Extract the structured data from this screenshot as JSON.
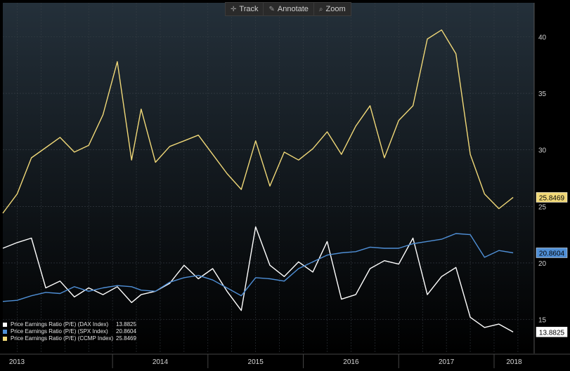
{
  "toolbar": {
    "track_label": "Track",
    "annotate_label": "Annotate",
    "zoom_label": "Zoom"
  },
  "colors": {
    "dax": "#ffffff",
    "spx": "#4f8fd6",
    "ccmp": "#f0d878",
    "background_top": "#24303a",
    "background_bottom": "#000000",
    "grid": "#3a4148"
  },
  "legend": {
    "items": [
      {
        "label": "Price Earnings Ratio (P/E) (DAX Index)",
        "value": "13.8825"
      },
      {
        "label": "Price Earnings Ratio (P/E) (SPX Index)",
        "value": "20.8604"
      },
      {
        "label": "Price Earnings Ratio (P/E) (CCMP Index)",
        "value": "25.8469"
      }
    ]
  },
  "chart_data": {
    "type": "line",
    "x": [
      2012.85,
      2013.0,
      2013.15,
      2013.3,
      2013.45,
      2013.6,
      2013.75,
      2013.9,
      2014.05,
      2014.2,
      2014.3,
      2014.45,
      2014.6,
      2014.75,
      2014.9,
      2015.05,
      2015.2,
      2015.35,
      2015.5,
      2015.65,
      2015.8,
      2015.95,
      2016.1,
      2016.25,
      2016.4,
      2016.55,
      2016.7,
      2016.85,
      2017.0,
      2017.15,
      2017.3,
      2017.45,
      2017.6,
      2017.75,
      2017.9,
      2018.05,
      2018.2
    ],
    "x_ticks": [
      "2013",
      "2014",
      "2015",
      "2016",
      "2017",
      "2018"
    ],
    "x_tick_values": [
      2013.0,
      2014.0,
      2015.0,
      2016.0,
      2017.0,
      2018.0
    ],
    "ylim": [
      12,
      43
    ],
    "y_ticks": [
      15,
      20,
      25,
      30,
      35,
      40
    ],
    "grid": true,
    "series": [
      {
        "name": "Price Earnings Ratio (P/E) (DAX Index)",
        "last_value": "13.8825",
        "values": [
          21.3,
          21.8,
          22.2,
          17.8,
          18.4,
          17.0,
          17.8,
          17.2,
          17.9,
          16.5,
          17.2,
          17.5,
          18.2,
          19.8,
          18.6,
          19.5,
          17.5,
          15.8,
          23.2,
          19.8,
          18.8,
          20.1,
          19.2,
          21.9,
          16.8,
          17.2,
          19.5,
          20.2,
          19.9,
          22.2,
          17.2,
          18.8,
          19.6,
          15.2,
          14.3,
          14.6,
          13.9
        ]
      },
      {
        "name": "Price Earnings Ratio (P/E) (SPX Index)",
        "last_value": "20.8604",
        "values": [
          16.6,
          16.7,
          17.1,
          17.4,
          17.3,
          17.9,
          17.5,
          17.8,
          18.0,
          17.9,
          17.6,
          17.5,
          18.3,
          18.7,
          18.9,
          18.5,
          17.8,
          17.1,
          18.7,
          18.6,
          18.4,
          19.5,
          20.1,
          20.7,
          20.9,
          21.0,
          21.4,
          21.3,
          21.3,
          21.7,
          21.9,
          22.1,
          22.6,
          22.5,
          20.5,
          21.1,
          20.9
        ]
      },
      {
        "name": "Price Earnings Ratio (P/E) (CCMP Index)",
        "last_value": "25.8469",
        "values": [
          24.4,
          26.1,
          29.3,
          30.2,
          31.1,
          29.8,
          30.4,
          33.1,
          37.8,
          29.1,
          33.6,
          28.9,
          30.3,
          30.8,
          31.3,
          29.6,
          27.9,
          26.5,
          30.8,
          26.8,
          29.8,
          29.1,
          30.1,
          31.6,
          29.6,
          32.1,
          33.9,
          29.3,
          32.6,
          33.9,
          39.8,
          40.6,
          38.5,
          29.6,
          26.1,
          24.8,
          25.8
        ]
      }
    ]
  }
}
